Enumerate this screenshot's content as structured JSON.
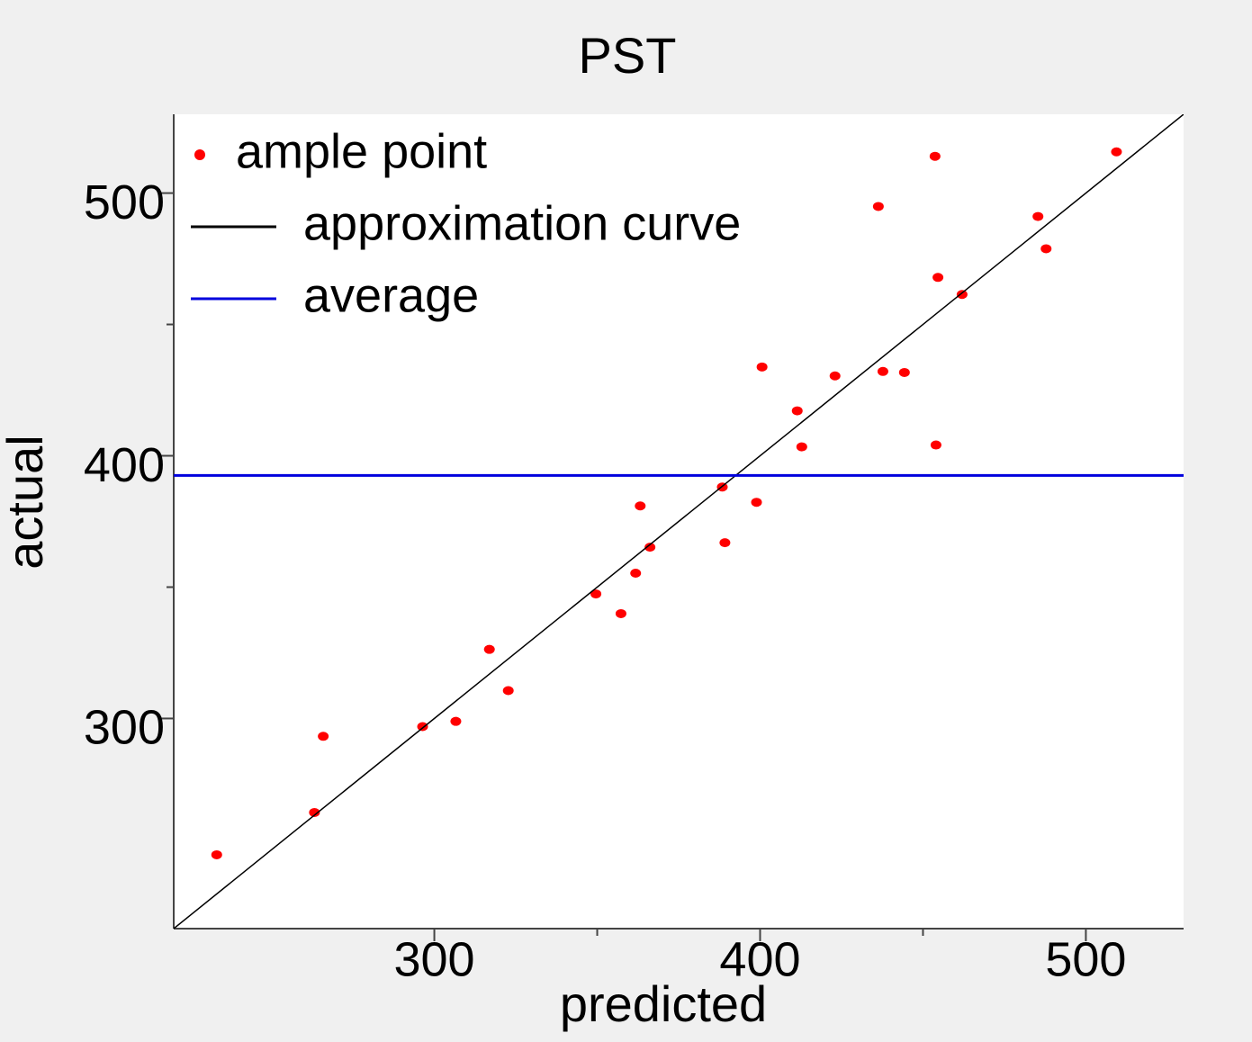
{
  "chart_data": {
    "type": "scatter",
    "title": "PST",
    "x_label": "predicted",
    "y_label": "actual",
    "xlim": [
      220,
      530
    ],
    "ylim": [
      220,
      530
    ],
    "xticks": [
      300,
      400,
      500
    ],
    "yticks": [
      300,
      400,
      500
    ],
    "xminor": [
      350,
      450
    ],
    "yminor": [
      350,
      450
    ],
    "legend": "upper left",
    "series": [
      {
        "name": "ample point",
        "color": "#ff0000",
        "x": [
          233.2,
          263.2,
          265.9,
          296.4,
          306.6,
          316.9,
          322.7,
          349.6,
          357.3,
          361.8,
          363.2,
          366.2,
          388.4,
          389.2,
          398.9,
          400.6,
          411.4,
          412.8,
          423.0,
          436.3,
          437.7,
          444.3,
          453.7,
          454.0,
          454.6,
          462.0,
          485.3,
          487.8,
          509.4
        ],
        "values": [
          248.1,
          264.2,
          293.2,
          296.9,
          298.9,
          326.3,
          310.6,
          347.4,
          339.9,
          355.3,
          380.9,
          365.2,
          388.1,
          366.9,
          382.3,
          433.8,
          417.1,
          403.4,
          430.4,
          494.9,
          432.1,
          431.7,
          514.0,
          404.1,
          467.9,
          461.4,
          491.1,
          478.8,
          515.7
        ]
      },
      {
        "name": "approximation curve",
        "color": "#000000",
        "mode": "line",
        "x": [
          220,
          530
        ],
        "values": [
          220,
          530
        ]
      },
      {
        "name": "average",
        "color": "#0000dd",
        "mode": "hline",
        "value": 392.5
      }
    ]
  }
}
